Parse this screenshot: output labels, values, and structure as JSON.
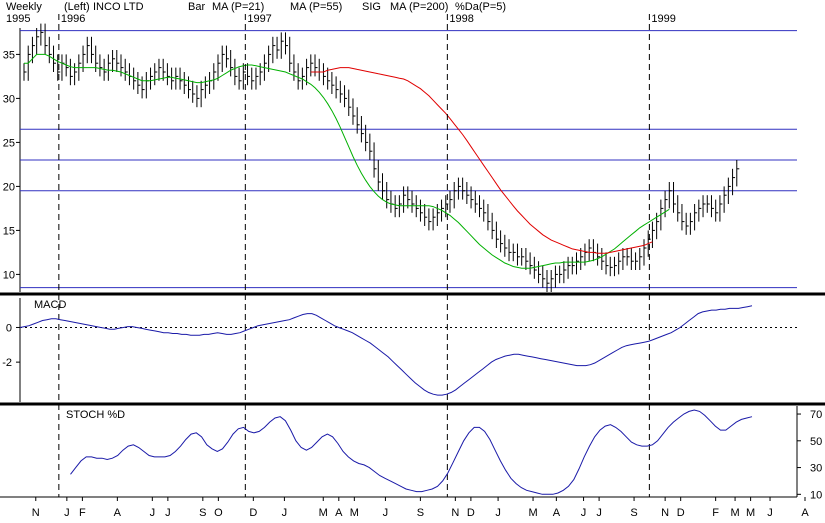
{
  "chart_data": {
    "type": "line",
    "header": {
      "left_label": "Weekly",
      "scale_label": "(Left)",
      "symbol": "INCO LTD",
      "legend": [
        {
          "text": "Bar",
          "color": "#000000"
        },
        {
          "text": "MA (P=21)",
          "color": "#00b000"
        },
        {
          "text": "MA (P=55)",
          "color": "#e00000"
        },
        {
          "text": "SIG",
          "color": "#000080"
        },
        {
          "text": "MA (P=200)",
          "color": "#000080"
        },
        {
          "text": "%Da(P=5)",
          "color": "#0000e0"
        }
      ]
    },
    "year_labels": [
      "1995",
      "1996",
      "1997",
      "1998",
      "1999"
    ],
    "year_positions": [
      0,
      10,
      58,
      110,
      162
    ],
    "x_range": [
      0,
      200
    ],
    "month_labels": [
      "N",
      "J",
      "F",
      "A",
      "J",
      "J",
      "S",
      "O",
      "D",
      "J",
      "M",
      "A",
      "M",
      "J",
      "S",
      "N",
      "D",
      "J",
      "M",
      "A",
      "J",
      "J",
      "S",
      "N",
      "D",
      "F",
      "M",
      "M",
      "J",
      "A"
    ],
    "month_positions": [
      2,
      10,
      14,
      23,
      32,
      36,
      45,
      49,
      58,
      66,
      76,
      80,
      84,
      92,
      101,
      110,
      114,
      121,
      130,
      136,
      143,
      147,
      156,
      164,
      168,
      177,
      182,
      186,
      191,
      200
    ],
    "price_panel": {
      "ylim": [
        8,
        38
      ],
      "ticks": [
        10,
        15,
        20,
        25,
        30,
        35
      ],
      "horizontal_levels": [
        37.7,
        26.5,
        23.0,
        19.5,
        8.5
      ],
      "close": [
        33,
        35,
        36,
        37,
        37.5,
        36,
        35,
        34,
        33,
        34,
        33.5,
        32.5,
        33,
        34,
        35,
        36,
        35,
        34,
        33.5,
        33,
        34,
        34.5,
        34,
        33.5,
        33,
        32.5,
        32,
        31.5,
        31,
        32,
        32.5,
        33,
        33.5,
        33,
        32.5,
        32,
        32.5,
        32,
        31.5,
        31,
        30.5,
        30,
        31,
        31.5,
        32,
        33,
        34,
        35,
        34.5,
        33.5,
        32.5,
        32,
        33,
        32.5,
        32,
        32.5,
        33,
        34,
        35,
        36,
        35.5,
        36.5,
        36,
        34,
        33,
        32,
        32.5,
        33.5,
        34,
        33.5,
        33,
        32.5,
        32,
        31.5,
        31,
        30.5,
        30,
        29,
        28,
        27,
        26,
        25,
        24,
        22,
        20.5,
        19.5,
        18.5,
        18,
        17.5,
        18,
        19,
        18.5,
        18,
        17.5,
        17,
        16.5,
        16,
        16.5,
        17,
        17.5,
        18,
        18.5,
        19.5,
        20,
        19.5,
        19,
        18.5,
        18,
        17.5,
        17,
        16,
        15,
        14,
        13.5,
        13,
        12.5,
        12.5,
        12,
        12,
        11.5,
        11,
        10.5,
        10,
        9.5,
        9,
        9.5,
        10,
        10,
        10.5,
        11,
        11,
        11.5,
        12,
        12.5,
        13,
        12.5,
        12,
        11.5,
        11,
        10.8,
        11,
        11.5,
        12,
        12,
        11.5,
        11.5,
        12,
        13,
        14,
        15,
        16,
        17.5,
        18.5,
        19.5,
        18,
        17,
        16,
        15.5,
        16,
        17,
        17.5,
        18,
        18,
        17.5,
        17,
        18,
        19,
        20,
        21,
        22
      ],
      "ma21": [
        34,
        34,
        34.5,
        35,
        35,
        35,
        34.8,
        34.5,
        34.2,
        34,
        33.8,
        33.6,
        33.5,
        33.5,
        33.5,
        33.5,
        33.5,
        33.5,
        33.4,
        33.3,
        33.2,
        33.2,
        33.1,
        33,
        32.8,
        32.6,
        32.4,
        32.2,
        32,
        32,
        32,
        32.1,
        32.2,
        32.3,
        32.4,
        32.4,
        32.3,
        32.2,
        32.1,
        32,
        31.9,
        31.8,
        31.8,
        31.9,
        32,
        32.1,
        32.3,
        32.6,
        32.9,
        33.2,
        33.4,
        33.6,
        33.7,
        33.8,
        33.8,
        33.7,
        33.6,
        33.5,
        33.4,
        33.3,
        33.2,
        33.1,
        33,
        32.8,
        32.6,
        32.4,
        32.2,
        31.9,
        31.6,
        31.2,
        30.7,
        30.1,
        29.4,
        28.6,
        27.7,
        26.7,
        25.6,
        24.5,
        23.4,
        22.4,
        21.5,
        20.7,
        20,
        19.4,
        18.9,
        18.5,
        18.2,
        18,
        17.9,
        17.8,
        17.8,
        17.8,
        17.8,
        17.8,
        17.8,
        17.8,
        17.8,
        17.7,
        17.5,
        17.3,
        17,
        16.7,
        16.3,
        15.9,
        15.4,
        14.9,
        14.4,
        13.9,
        13.4,
        13,
        12.6,
        12.2,
        11.9,
        11.6,
        11.3,
        11.1,
        10.9,
        10.8,
        10.7,
        10.7,
        10.7,
        10.8,
        10.9,
        11,
        11.1,
        11.2,
        11.3,
        11.3,
        11.4,
        11.4,
        11.4,
        11.4,
        11.4,
        11.4,
        11.5,
        11.6,
        11.8,
        12,
        12.3,
        12.6,
        12.9,
        13.3,
        13.7,
        14.1,
        14.5,
        14.9,
        15.3,
        15.6,
        15.9,
        16.2,
        16.5,
        16.8,
        17.1,
        17.4
      ],
      "ma55": [
        33,
        33,
        33,
        33,
        33.2,
        33.3,
        33.4,
        33.5,
        33.5,
        33.5,
        33.4,
        33.3,
        33.2,
        33.1,
        33,
        32.9,
        32.8,
        32.7,
        32.6,
        32.5,
        32.4,
        32.3,
        32.2,
        32,
        31.7,
        31.4,
        31.1,
        30.7,
        30.3,
        29.8,
        29.3,
        28.8,
        28.3,
        27.7,
        27.1,
        26.5,
        25.9,
        25.2,
        24.5,
        23.8,
        23.1,
        22.4,
        21.7,
        21,
        20.3,
        19.6,
        19,
        18.4,
        17.8,
        17.2,
        16.7,
        16.2,
        15.7,
        15.3,
        14.9,
        14.5,
        14.2,
        13.9,
        13.7,
        13.5,
        13.3,
        13.1,
        12.9,
        12.8,
        12.7,
        12.6,
        12.5,
        12.5,
        12.4,
        12.4,
        12.4,
        12.5,
        12.6,
        12.7,
        12.8,
        12.9,
        13,
        13.1,
        13.2,
        13.3,
        13.5,
        13.7
      ],
      "ma55_offset": 68,
      "ma21_offset": 0
    },
    "macd_panel": {
      "label": "MACD",
      "ylim": [
        -4.3,
        1.7
      ],
      "ticks": [
        0,
        -2
      ],
      "zero_line": 0,
      "values": [
        0,
        0.05,
        0.1,
        0.2,
        0.3,
        0.4,
        0.45,
        0.5,
        0.5,
        0.45,
        0.4,
        0.35,
        0.3,
        0.25,
        0.2,
        0.15,
        0.1,
        0.05,
        0,
        -0.05,
        -0.1,
        -0.1,
        -0.05,
        0,
        0.05,
        0.05,
        0,
        -0.05,
        -0.1,
        -0.15,
        -0.2,
        -0.25,
        -0.3,
        -0.3,
        -0.35,
        -0.35,
        -0.4,
        -0.4,
        -0.45,
        -0.45,
        -0.45,
        -0.4,
        -0.4,
        -0.35,
        -0.3,
        -0.35,
        -0.4,
        -0.4,
        -0.35,
        -0.3,
        -0.2,
        -0.1,
        0,
        0.1,
        0.15,
        0.2,
        0.25,
        0.3,
        0.35,
        0.4,
        0.45,
        0.55,
        0.65,
        0.75,
        0.8,
        0.8,
        0.7,
        0.55,
        0.4,
        0.25,
        0.1,
        0,
        -0.1,
        -0.2,
        -0.3,
        -0.45,
        -0.6,
        -0.75,
        -0.9,
        -1.1,
        -1.3,
        -1.5,
        -1.7,
        -1.95,
        -2.2,
        -2.45,
        -2.7,
        -2.95,
        -3.2,
        -3.4,
        -3.6,
        -3.75,
        -3.85,
        -3.9,
        -3.9,
        -3.85,
        -3.75,
        -3.6,
        -3.4,
        -3.2,
        -3,
        -2.8,
        -2.6,
        -2.4,
        -2.2,
        -2,
        -1.85,
        -1.75,
        -1.65,
        -1.6,
        -1.55,
        -1.55,
        -1.6,
        -1.65,
        -1.7,
        -1.75,
        -1.8,
        -1.85,
        -1.9,
        -1.95,
        -2,
        -2.05,
        -2.1,
        -2.15,
        -2.2,
        -2.2,
        -2.2,
        -2.15,
        -2.05,
        -1.9,
        -1.75,
        -1.6,
        -1.45,
        -1.3,
        -1.15,
        -1.05,
        -1,
        -0.95,
        -0.9,
        -0.85,
        -0.8,
        -0.7,
        -0.6,
        -0.5,
        -0.4,
        -0.3,
        -0.15,
        0,
        0.2,
        0.4,
        0.6,
        0.8,
        0.9,
        0.95,
        1,
        1,
        1.05,
        1.05,
        1.1,
        1.1,
        1.1,
        1.15,
        1.2,
        1.25
      ]
    },
    "stoch_panel": {
      "label": "STOCH %D",
      "ylim": [
        8,
        76
      ],
      "ticks": [
        70,
        50,
        30,
        10
      ],
      "x_start": 13,
      "values": [
        25,
        30,
        35,
        38,
        38,
        37,
        37,
        36,
        37,
        39,
        43,
        46,
        47,
        45,
        42,
        39,
        38,
        38,
        38,
        39,
        42,
        46,
        51,
        55,
        56,
        53,
        47,
        44,
        42,
        44,
        49,
        55,
        59,
        60,
        57,
        56,
        57,
        60,
        64,
        67,
        68,
        65,
        58,
        50,
        45,
        43,
        45,
        49,
        53,
        55,
        53,
        48,
        42,
        38,
        35,
        33,
        32,
        30,
        27,
        24,
        22,
        20,
        18,
        16,
        14,
        13,
        12,
        12,
        13,
        14,
        16,
        20,
        26,
        34,
        42,
        50,
        56,
        60,
        60,
        57,
        51,
        43,
        35,
        28,
        22,
        18,
        15,
        13,
        12,
        11,
        10,
        10,
        10,
        11,
        13,
        16,
        21,
        29,
        38,
        46,
        53,
        58,
        61,
        62,
        60,
        57,
        53,
        49,
        47,
        46,
        46,
        47,
        50,
        55,
        60,
        64,
        67,
        70,
        72,
        73,
        72,
        69,
        65,
        61,
        58,
        58,
        61,
        64,
        66,
        67,
        68
      ]
    }
  }
}
